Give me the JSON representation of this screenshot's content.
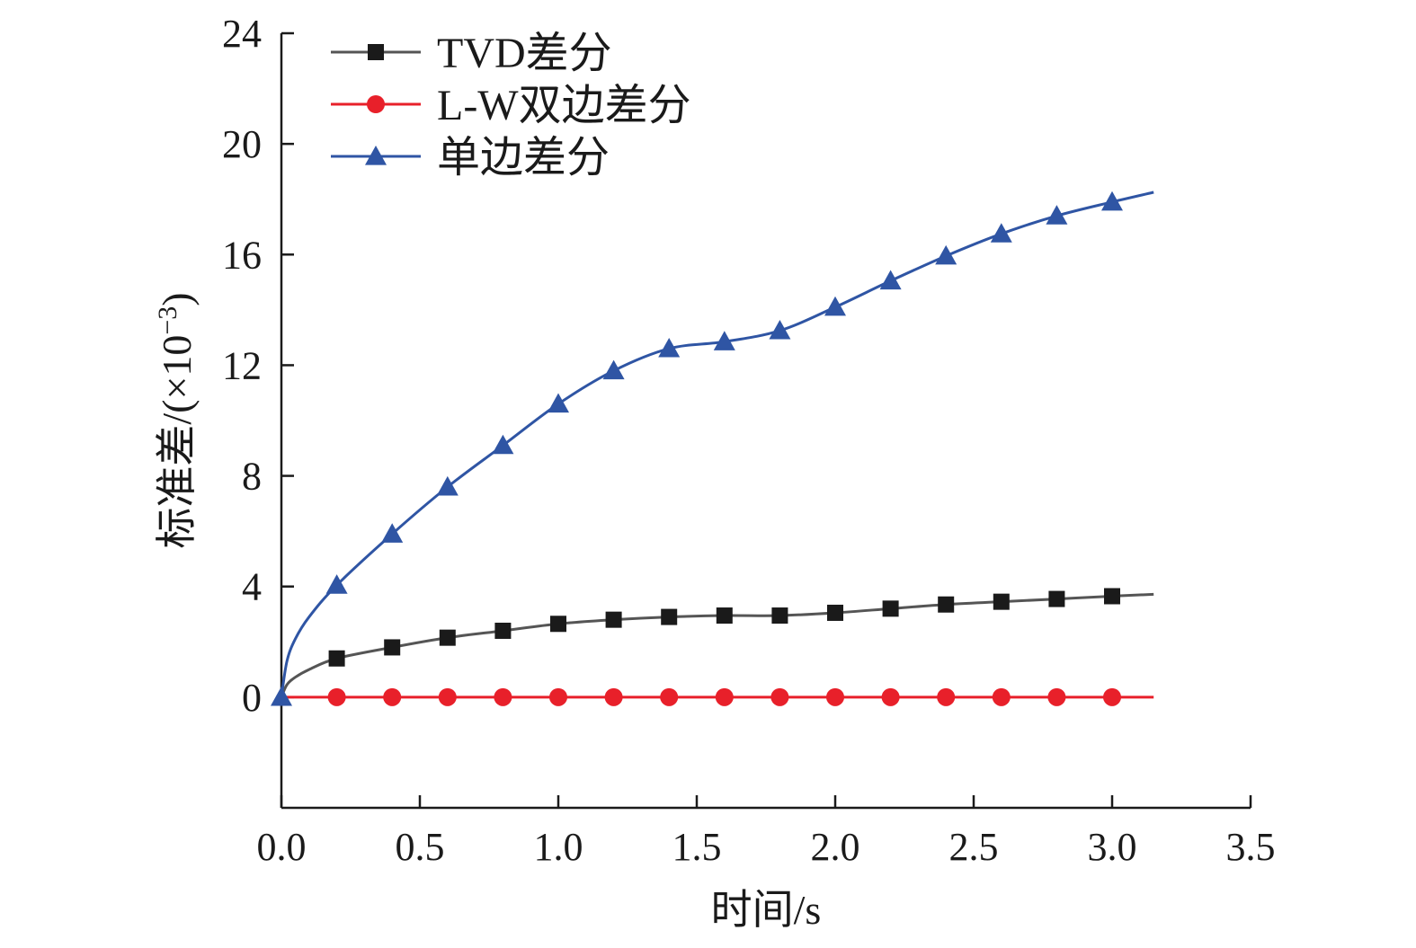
{
  "chart_data": {
    "type": "line",
    "title": "",
    "xlabel": "时间/s",
    "ylabel_main": "标准差/(×10",
    "ylabel_sup": "−3",
    "ylabel_close": ")",
    "xlim": [
      0,
      3.5
    ],
    "ylim": [
      -4,
      24
    ],
    "xticks": [
      0,
      0.5,
      1.0,
      1.5,
      2.0,
      2.5,
      3.0,
      3.5
    ],
    "xtick_labels": [
      "0.0",
      "0.5",
      "1.0",
      "1.5",
      "2.0",
      "2.5",
      "3.0",
      "3.5"
    ],
    "yticks": [
      0,
      4,
      8,
      12,
      16,
      20,
      24
    ],
    "ytick_labels": [
      "0",
      "4",
      "8",
      "12",
      "16",
      "20",
      "24"
    ],
    "grid": false,
    "legend_position": "top-left",
    "series": [
      {
        "name": "TVD差分",
        "color": "#555555",
        "marker": "square",
        "marker_color": "#1a1a1a",
        "marker_x": [
          0.2,
          0.4,
          0.6,
          0.8,
          1.0,
          1.2,
          1.4,
          1.6,
          1.8,
          2.0,
          2.2,
          2.4,
          2.6,
          2.8,
          3.0
        ],
        "marker_y": [
          1.4,
          1.8,
          2.15,
          2.4,
          2.65,
          2.8,
          2.9,
          2.95,
          2.95,
          3.05,
          3.2,
          3.35,
          3.45,
          3.55,
          3.65
        ],
        "curve": [
          [
            0,
            0
          ],
          [
            0.02,
            0.45
          ],
          [
            0.05,
            0.72
          ],
          [
            0.1,
            1.0
          ],
          [
            0.2,
            1.4
          ],
          [
            0.4,
            1.8
          ],
          [
            0.6,
            2.15
          ],
          [
            0.8,
            2.4
          ],
          [
            1.0,
            2.65
          ],
          [
            1.2,
            2.8
          ],
          [
            1.4,
            2.9
          ],
          [
            1.6,
            2.95
          ],
          [
            1.8,
            2.95
          ],
          [
            2.0,
            3.05
          ],
          [
            2.2,
            3.2
          ],
          [
            2.4,
            3.35
          ],
          [
            2.6,
            3.45
          ],
          [
            2.8,
            3.55
          ],
          [
            3.0,
            3.65
          ],
          [
            3.15,
            3.72
          ]
        ]
      },
      {
        "name": "L-W双边差分",
        "color": "#e8202a",
        "marker": "circle",
        "marker_color": "#e8202a",
        "marker_x": [
          0.2,
          0.4,
          0.6,
          0.8,
          1.0,
          1.2,
          1.4,
          1.6,
          1.8,
          2.0,
          2.2,
          2.4,
          2.6,
          2.8,
          3.0
        ],
        "marker_y": [
          0,
          0,
          0,
          0,
          0,
          0,
          0,
          0,
          0,
          0,
          0,
          0,
          0,
          0,
          0
        ],
        "curve": [
          [
            0,
            0
          ],
          [
            3.15,
            0
          ]
        ]
      },
      {
        "name": "单边差分",
        "color": "#2f55a4",
        "marker": "triangle",
        "marker_color": "#2f55a4",
        "marker_x": [
          0,
          0.2,
          0.4,
          0.6,
          0.8,
          1.0,
          1.2,
          1.4,
          1.6,
          1.8,
          2.0,
          2.2,
          2.4,
          2.6,
          2.8,
          3.0
        ],
        "marker_y": [
          0,
          4.05,
          5.9,
          7.6,
          9.1,
          10.6,
          11.8,
          12.6,
          12.85,
          13.25,
          14.1,
          15.05,
          15.95,
          16.75,
          17.4,
          17.9
        ],
        "curve": [
          [
            0,
            0
          ],
          [
            0.02,
            1.3
          ],
          [
            0.05,
            2.1
          ],
          [
            0.1,
            2.9
          ],
          [
            0.2,
            4.05
          ],
          [
            0.4,
            5.9
          ],
          [
            0.6,
            7.6
          ],
          [
            0.8,
            9.1
          ],
          [
            1.0,
            10.6
          ],
          [
            1.2,
            11.8
          ],
          [
            1.4,
            12.6
          ],
          [
            1.6,
            12.85
          ],
          [
            1.8,
            13.25
          ],
          [
            2.0,
            14.1
          ],
          [
            2.2,
            15.05
          ],
          [
            2.4,
            15.95
          ],
          [
            2.6,
            16.75
          ],
          [
            2.8,
            17.4
          ],
          [
            3.0,
            17.9
          ],
          [
            3.15,
            18.25
          ]
        ]
      }
    ]
  }
}
